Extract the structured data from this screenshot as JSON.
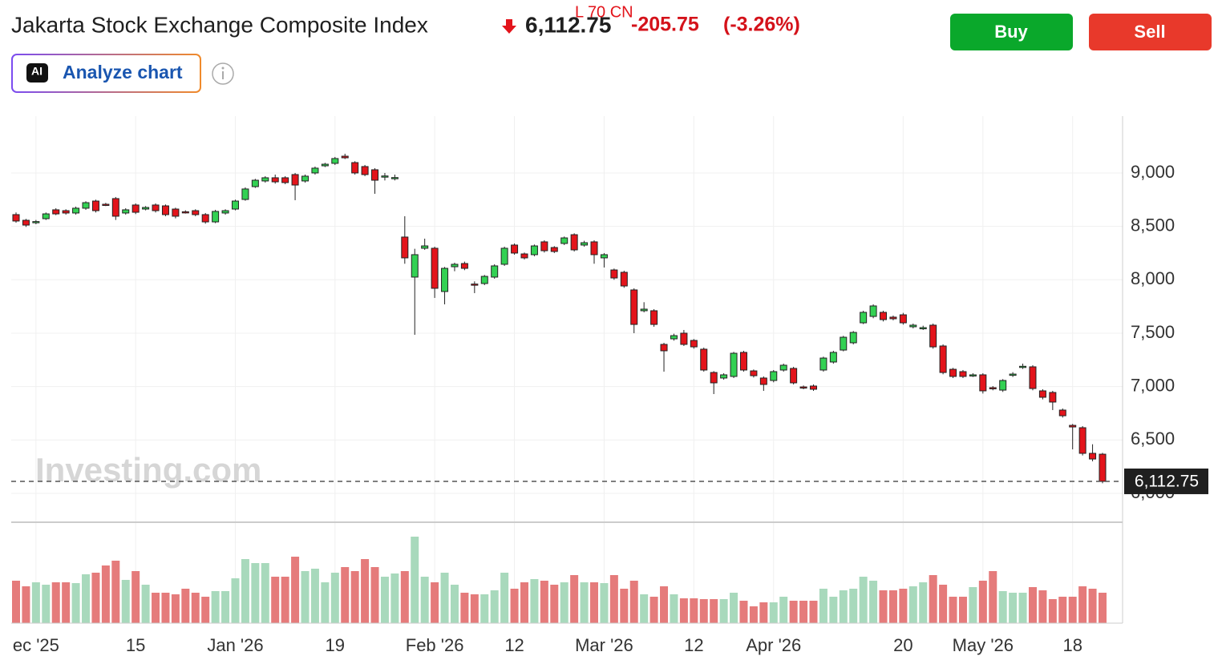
{
  "header": {
    "title": "Jakarta Stock Exchange Composite Index",
    "price": "6,112.75",
    "change": "-205.75",
    "change_pct": "(-3.26%)",
    "overlay_text": "L 70 CN",
    "buy": "Buy",
    "sell": "Sell",
    "ai_badge": "AI",
    "analyze": "Analyze chart"
  },
  "watermark": "Investing.com",
  "chart_data": {
    "type": "candlestick",
    "categories": [
      null,
      null,
      "ec '25",
      null,
      null,
      null,
      null,
      null,
      null,
      null,
      null,
      null,
      "15",
      null,
      null,
      null,
      null,
      null,
      null,
      null,
      null,
      null,
      "Jan '26",
      null,
      null,
      null,
      null,
      null,
      null,
      null,
      null,
      null,
      "19",
      null,
      null,
      null,
      null,
      null,
      null,
      null,
      null,
      null,
      "Feb '26",
      null,
      null,
      null,
      null,
      null,
      null,
      null,
      "12",
      null,
      null,
      null,
      null,
      null,
      null,
      null,
      null,
      "Mar '26",
      null,
      null,
      null,
      null,
      null,
      null,
      null,
      null,
      "12",
      null,
      null,
      null,
      null,
      null,
      null,
      null,
      "Apr '26",
      null,
      null,
      null,
      null,
      null,
      null,
      null,
      null,
      null,
      null,
      null,
      null,
      "20",
      null,
      null,
      null,
      null,
      null,
      null,
      null,
      "May '26",
      null,
      null,
      null,
      null,
      null,
      null,
      null,
      null,
      "18",
      null,
      null,
      null
    ],
    "open": [
      8610,
      8557,
      8535,
      8572,
      8655,
      8647,
      8625,
      8670,
      8737,
      8707,
      8760,
      8625,
      8700,
      8662,
      8700,
      8692,
      8662,
      8637,
      8647,
      8610,
      8542,
      8625,
      8662,
      8752,
      8872,
      8925,
      8955,
      8955,
      8985,
      8925,
      9000,
      9067,
      9090,
      9157,
      9097,
      9060,
      9030,
      8965,
      8950,
      8400,
      8025,
      8295,
      8295,
      7890,
      8122,
      8152,
      7960,
      7965,
      8025,
      8145,
      8325,
      8242,
      8235,
      8355,
      8302,
      8340,
      8422,
      8325,
      8355,
      8205,
      8092,
      8070,
      7905,
      7710,
      7710,
      7395,
      7447,
      7500,
      7432,
      7350,
      7132,
      7080,
      7095,
      7320,
      7147,
      7080,
      7057,
      7155,
      7170,
      6997,
      7005,
      7155,
      7230,
      7342,
      7410,
      7597,
      7657,
      7695,
      7650,
      7672,
      7560,
      7545,
      7575,
      7380,
      7162,
      7140,
      7102,
      7110,
      6990,
      6967,
      7105,
      7180,
      7185,
      6960,
      6945,
      6780,
      6637,
      6615,
      6375,
      6367
    ],
    "high": [
      8630,
      8570,
      8560,
      8630,
      8670,
      8660,
      8685,
      8735,
      8750,
      8720,
      8775,
      8670,
      8715,
      8690,
      8715,
      8705,
      8675,
      8650,
      8660,
      8625,
      8655,
      8660,
      8750,
      8865,
      8945,
      8970,
      8985,
      8970,
      9000,
      8985,
      9060,
      9095,
      9150,
      9180,
      9110,
      9075,
      9045,
      9000,
      8985,
      8595,
      8290,
      8385,
      8310,
      8120,
      8160,
      8170,
      7985,
      8045,
      8145,
      8310,
      8340,
      8255,
      8330,
      8370,
      8315,
      8405,
      8435,
      8365,
      8370,
      8250,
      8105,
      8085,
      7920,
      7790,
      7725,
      7410,
      7495,
      7530,
      7445,
      7365,
      7145,
      7125,
      7325,
      7335,
      7160,
      7095,
      7155,
      7215,
      7185,
      7010,
      7020,
      7280,
      7335,
      7475,
      7520,
      7710,
      7770,
      7710,
      7665,
      7690,
      7590,
      7570,
      7590,
      7395,
      7175,
      7155,
      7125,
      7125,
      7005,
      7070,
      7135,
      7215,
      7200,
      6975,
      6960,
      6795,
      6650,
      6630,
      6460,
      6380
    ],
    "low": [
      8535,
      8495,
      8520,
      8560,
      8605,
      8610,
      8610,
      8655,
      8630,
      8690,
      8560,
      8610,
      8615,
      8650,
      8630,
      8595,
      8575,
      8620,
      8595,
      8525,
      8530,
      8610,
      8650,
      8740,
      8860,
      8910,
      8900,
      8895,
      8745,
      8910,
      8985,
      9055,
      9075,
      9130,
      8985,
      8970,
      8805,
      8930,
      8930,
      8150,
      7485,
      8280,
      7830,
      7770,
      8080,
      8090,
      7875,
      7950,
      8010,
      8130,
      8235,
      8190,
      8220,
      8255,
      8250,
      8325,
      8265,
      8310,
      8150,
      8115,
      8000,
      7925,
      7500,
      7695,
      7560,
      7140,
      7430,
      7380,
      7355,
      7140,
      6930,
      7065,
      7080,
      7140,
      7085,
      6960,
      7040,
      7140,
      7020,
      6975,
      6960,
      7140,
      7215,
      7330,
      7395,
      7585,
      7640,
      7610,
      7620,
      7580,
      7545,
      7530,
      7355,
      7115,
      7080,
      7080,
      7090,
      6935,
      6965,
      6950,
      7090,
      7165,
      6965,
      6880,
      6780,
      6710,
      6412,
      6355,
      6300,
      6095
    ],
    "close": [
      8550,
      8512,
      8545,
      8617,
      8617,
      8625,
      8670,
      8722,
      8647,
      8700,
      8595,
      8655,
      8632,
      8677,
      8647,
      8610,
      8595,
      8632,
      8610,
      8542,
      8640,
      8647,
      8737,
      8850,
      8932,
      8955,
      8917,
      8910,
      8887,
      8970,
      9045,
      9082,
      9135,
      9142,
      9000,
      8985,
      8932,
      8972,
      8957,
      8205,
      8235,
      8317,
      7920,
      8107,
      8145,
      8107,
      7950,
      8032,
      8130,
      8295,
      8250,
      8205,
      8317,
      8272,
      8265,
      8392,
      8280,
      8347,
      8235,
      8235,
      8017,
      7942,
      7582,
      7725,
      7582,
      7335,
      7477,
      7395,
      7372,
      7155,
      7035,
      7110,
      7312,
      7155,
      7102,
      7020,
      7140,
      7200,
      7035,
      6990,
      6975,
      7267,
      7320,
      7462,
      7507,
      7695,
      7755,
      7627,
      7635,
      7597,
      7575,
      7552,
      7372,
      7132,
      7095,
      7095,
      7110,
      6960,
      6982,
      7057,
      7117,
      7190,
      6982,
      6900,
      6855,
      6727,
      6622,
      6375,
      6322,
      6112.75
    ],
    "volume": [
      53,
      46,
      51,
      48,
      51,
      51,
      50,
      61,
      63,
      72,
      78,
      54,
      65,
      48,
      38,
      38,
      36,
      43,
      38,
      33,
      40,
      40,
      56,
      80,
      75,
      75,
      58,
      58,
      83,
      65,
      68,
      51,
      63,
      70,
      65,
      80,
      70,
      58,
      62,
      65,
      108,
      58,
      51,
      63,
      48,
      38,
      36,
      36,
      41,
      63,
      43,
      51,
      55,
      53,
      48,
      51,
      60,
      51,
      51,
      50,
      60,
      43,
      53,
      36,
      33,
      46,
      36,
      31,
      31,
      30,
      30,
      30,
      38,
      28,
      21,
      26,
      26,
      33,
      28,
      28,
      28,
      43,
      33,
      41,
      43,
      58,
      53,
      41,
      41,
      43,
      46,
      51,
      60,
      48,
      33,
      33,
      45,
      53,
      65,
      40,
      38,
      38,
      45,
      41,
      30,
      33,
      33,
      46,
      43,
      38
    ],
    "ylim": [
      5730,
      9532
    ],
    "yticks": [
      {
        "value": 6000,
        "label": "6,000"
      },
      {
        "value": 6500,
        "label": "6,500"
      },
      {
        "value": 7000,
        "label": "7,000"
      },
      {
        "value": 7500,
        "label": "7,500"
      },
      {
        "value": 8000,
        "label": "8,000"
      },
      {
        "value": 8500,
        "label": "8,500"
      },
      {
        "value": 9000,
        "label": "9,000"
      }
    ],
    "grid": true,
    "up_color": "#33d153",
    "down_color": "#e3141b",
    "up_volume_color": "#a8d9bc",
    "down_volume_color": "#e57b7b"
  }
}
